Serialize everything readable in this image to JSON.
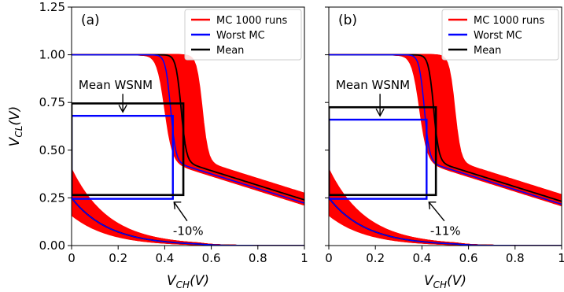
{
  "chart_data": [
    {
      "type": "line",
      "panel_label": "(a)",
      "xlabel_main": "V",
      "xlabel_sub": "CH",
      "xlabel_unit": "(V)",
      "ylabel_main": "V",
      "ylabel_sub": "CL",
      "ylabel_unit": "(V)",
      "xlim": [
        0,
        1
      ],
      "ylim": [
        0,
        1.25
      ],
      "xticks": [
        "0",
        "0.2",
        "0.4",
        "0.6",
        "0.8",
        "1"
      ],
      "yticks": [
        "0.00",
        "0.25",
        "0.50",
        "0.75",
        "1.00",
        "1.25"
      ],
      "legend": {
        "placement": "top-right",
        "entries": [
          {
            "label": "MC 1000 runs",
            "color": "#ff0000"
          },
          {
            "label": "Worst MC",
            "color": "#0000ff"
          },
          {
            "label": "Mean",
            "color": "#000000"
          }
        ]
      },
      "mc_band": {
        "color": "#ff0000",
        "switch_x_min": 0.4,
        "switch_x_max": 0.56,
        "low_tail_start_max": 0.4
      },
      "worst_mc": {
        "color": "#0000ff",
        "switch_x": 0.425,
        "snm_box": {
          "x0": 0.0,
          "x1": 0.435,
          "y0": 0.245,
          "y1": 0.68
        }
      },
      "mean": {
        "color": "#000000",
        "switch_x": 0.47,
        "snm_box": {
          "x0": 0.0,
          "x1": 0.48,
          "y0": 0.265,
          "y1": 0.745
        }
      },
      "annotations": [
        {
          "text": "Mean WSNM",
          "arrow_to": [
            0.22,
            0.7
          ]
        },
        {
          "text": "-10%",
          "arrow_to": [
            0.43,
            0.24
          ]
        }
      ]
    },
    {
      "type": "line",
      "panel_label": "(b)",
      "xlabel_main": "V",
      "xlabel_sub": "CH",
      "xlabel_unit": "(V)",
      "xlim": [
        0,
        1
      ],
      "ylim": [
        0,
        1.25
      ],
      "xticks": [
        "0",
        "0.2",
        "0.4",
        "0.6",
        "0.8",
        "1"
      ],
      "legend": {
        "placement": "top-right",
        "entries": [
          {
            "label": "MC 1000 runs",
            "color": "#ff0000"
          },
          {
            "label": "Worst MC",
            "color": "#0000ff"
          },
          {
            "label": "Mean",
            "color": "#000000"
          }
        ]
      },
      "mc_band": {
        "color": "#ff0000",
        "switch_x_min": 0.39,
        "switch_x_max": 0.54,
        "low_tail_start_max": 0.4
      },
      "worst_mc": {
        "color": "#0000ff",
        "switch_x": 0.41,
        "snm_box": {
          "x0": 0.0,
          "x1": 0.42,
          "y0": 0.245,
          "y1": 0.66
        }
      },
      "mean": {
        "color": "#000000",
        "switch_x": 0.45,
        "snm_box": {
          "x0": 0.0,
          "x1": 0.46,
          "y0": 0.265,
          "y1": 0.725
        }
      },
      "annotations": [
        {
          "text": "Mean WSNM",
          "arrow_to": [
            0.22,
            0.68
          ]
        },
        {
          "text": "-11%",
          "arrow_to": [
            0.42,
            0.24
          ]
        }
      ]
    }
  ]
}
